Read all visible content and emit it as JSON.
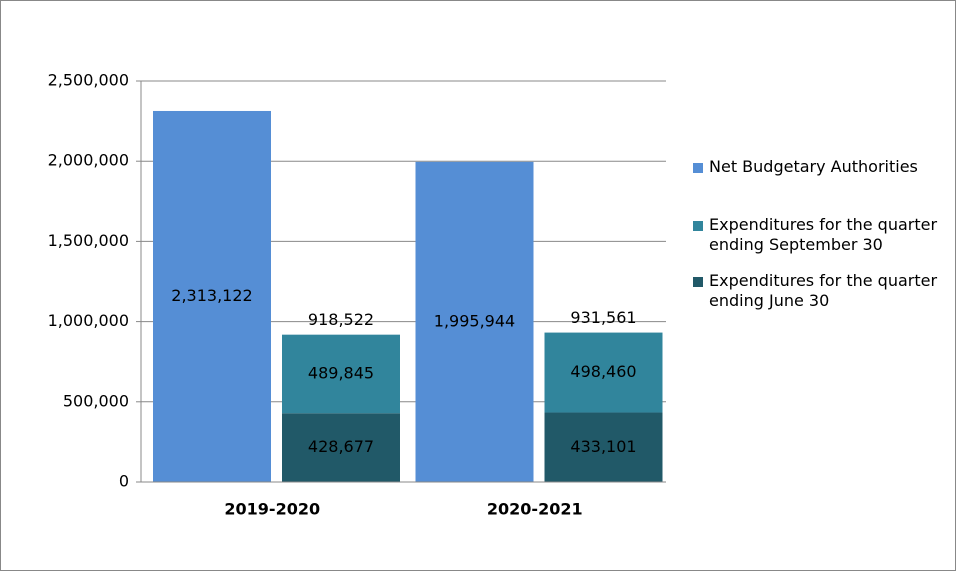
{
  "chart_data": {
    "type": "bar",
    "categories": [
      "2019-2020",
      "2020-2021"
    ],
    "series": [
      {
        "name": "Net Budgetary Authorities",
        "color": "#558ed5",
        "values": [
          2313122,
          1995944
        ],
        "value_labels": [
          "2,313,122",
          "1,995,944"
        ]
      },
      {
        "name": "Expenditures for the quarter ending September 30",
        "color": "#31859c",
        "stacked": true,
        "values": [
          489845,
          498460
        ],
        "value_labels": [
          "489,845",
          "498,460"
        ]
      },
      {
        "name": "Expenditures for the quarter ending June 30",
        "color": "#215968",
        "stacked": true,
        "values": [
          428677,
          433101
        ],
        "value_labels": [
          "428,677",
          "433,101"
        ]
      }
    ],
    "stack_totals": {
      "values": [
        918522,
        931561
      ],
      "value_labels": [
        "918,522",
        "931,561"
      ]
    },
    "ylim": [
      0,
      2500000
    ],
    "yticks": [
      0,
      {
        "value": 500000,
        "label": "500,000"
      },
      {
        "value": 1000000,
        "label": "1,000,000"
      },
      {
        "value": 1500000,
        "label": "1,500,000"
      },
      {
        "value": 2000000,
        "label": "2,000,000"
      },
      {
        "value": 2500000,
        "label": "2,500,000"
      }
    ],
    "grid": true,
    "legend": "right"
  }
}
